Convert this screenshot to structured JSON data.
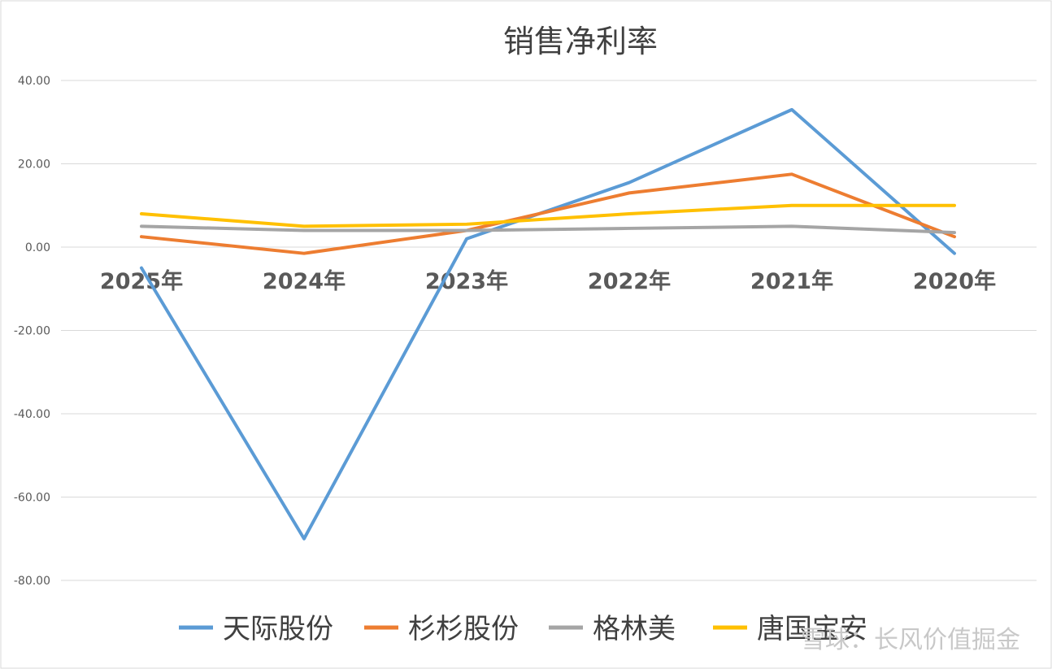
{
  "chart_data": {
    "type": "line",
    "title": "销售净利率",
    "categories": [
      "2025年",
      "2024年",
      "2023年",
      "2022年",
      "2021年",
      "2020年"
    ],
    "ylim": [
      -80,
      40
    ],
    "yticks": [
      "40.00",
      "20.00",
      "0.00",
      "-20.00",
      "-40.00",
      "-60.00",
      "-80.00"
    ],
    "ytick_values": [
      40,
      20,
      0,
      -20,
      -40,
      -60,
      -80
    ],
    "grid": true,
    "legend_position": "bottom",
    "series": [
      {
        "name": "天际股份",
        "color": "#5b9bd5",
        "values": [
          -5,
          -70,
          2,
          15.5,
          33,
          -1.5
        ]
      },
      {
        "name": "杉杉股份",
        "color": "#ed7d31",
        "values": [
          2.5,
          -1.5,
          4,
          13,
          17.5,
          2.5
        ]
      },
      {
        "name": "格林美",
        "color": "#a5a5a5",
        "values": [
          5,
          4,
          4,
          4.5,
          5,
          3.5
        ]
      },
      {
        "name": "唐国宝安",
        "color": "#ffc000",
        "values": [
          8,
          5,
          5.5,
          8,
          10,
          10
        ]
      }
    ]
  },
  "watermark": "雪球：长风价值掘金"
}
